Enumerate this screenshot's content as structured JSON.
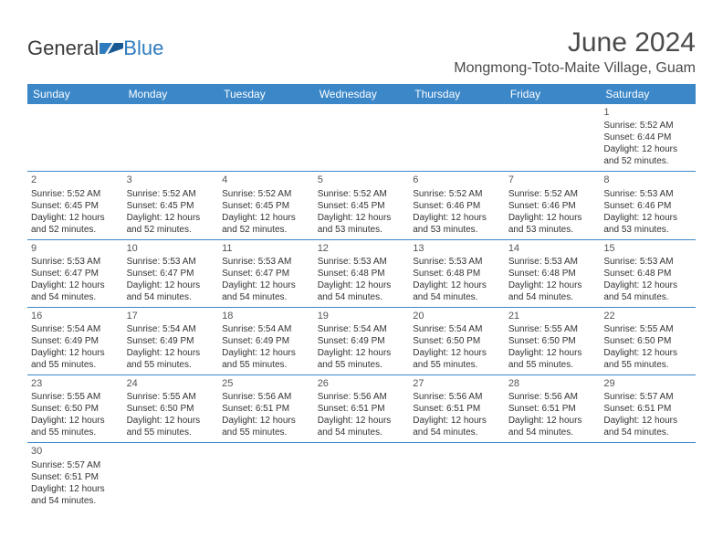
{
  "logo": {
    "text1": "General",
    "text2": "Blue"
  },
  "title": "June 2024",
  "location": "Mongmong-Toto-Maite Village, Guam",
  "header_bg": "#3b87c8",
  "header_text": "#ffffff",
  "rule_color": "#3b87c8",
  "daynames": [
    "Sunday",
    "Monday",
    "Tuesday",
    "Wednesday",
    "Thursday",
    "Friday",
    "Saturday"
  ],
  "weeks": [
    [
      null,
      null,
      null,
      null,
      null,
      null,
      {
        "n": "1",
        "sr": "Sunrise: 5:52 AM",
        "ss": "Sunset: 6:44 PM",
        "d1": "Daylight: 12 hours",
        "d2": "and 52 minutes."
      }
    ],
    [
      {
        "n": "2",
        "sr": "Sunrise: 5:52 AM",
        "ss": "Sunset: 6:45 PM",
        "d1": "Daylight: 12 hours",
        "d2": "and 52 minutes."
      },
      {
        "n": "3",
        "sr": "Sunrise: 5:52 AM",
        "ss": "Sunset: 6:45 PM",
        "d1": "Daylight: 12 hours",
        "d2": "and 52 minutes."
      },
      {
        "n": "4",
        "sr": "Sunrise: 5:52 AM",
        "ss": "Sunset: 6:45 PM",
        "d1": "Daylight: 12 hours",
        "d2": "and 52 minutes."
      },
      {
        "n": "5",
        "sr": "Sunrise: 5:52 AM",
        "ss": "Sunset: 6:45 PM",
        "d1": "Daylight: 12 hours",
        "d2": "and 53 minutes."
      },
      {
        "n": "6",
        "sr": "Sunrise: 5:52 AM",
        "ss": "Sunset: 6:46 PM",
        "d1": "Daylight: 12 hours",
        "d2": "and 53 minutes."
      },
      {
        "n": "7",
        "sr": "Sunrise: 5:52 AM",
        "ss": "Sunset: 6:46 PM",
        "d1": "Daylight: 12 hours",
        "d2": "and 53 minutes."
      },
      {
        "n": "8",
        "sr": "Sunrise: 5:53 AM",
        "ss": "Sunset: 6:46 PM",
        "d1": "Daylight: 12 hours",
        "d2": "and 53 minutes."
      }
    ],
    [
      {
        "n": "9",
        "sr": "Sunrise: 5:53 AM",
        "ss": "Sunset: 6:47 PM",
        "d1": "Daylight: 12 hours",
        "d2": "and 54 minutes."
      },
      {
        "n": "10",
        "sr": "Sunrise: 5:53 AM",
        "ss": "Sunset: 6:47 PM",
        "d1": "Daylight: 12 hours",
        "d2": "and 54 minutes."
      },
      {
        "n": "11",
        "sr": "Sunrise: 5:53 AM",
        "ss": "Sunset: 6:47 PM",
        "d1": "Daylight: 12 hours",
        "d2": "and 54 minutes."
      },
      {
        "n": "12",
        "sr": "Sunrise: 5:53 AM",
        "ss": "Sunset: 6:48 PM",
        "d1": "Daylight: 12 hours",
        "d2": "and 54 minutes."
      },
      {
        "n": "13",
        "sr": "Sunrise: 5:53 AM",
        "ss": "Sunset: 6:48 PM",
        "d1": "Daylight: 12 hours",
        "d2": "and 54 minutes."
      },
      {
        "n": "14",
        "sr": "Sunrise: 5:53 AM",
        "ss": "Sunset: 6:48 PM",
        "d1": "Daylight: 12 hours",
        "d2": "and 54 minutes."
      },
      {
        "n": "15",
        "sr": "Sunrise: 5:53 AM",
        "ss": "Sunset: 6:48 PM",
        "d1": "Daylight: 12 hours",
        "d2": "and 54 minutes."
      }
    ],
    [
      {
        "n": "16",
        "sr": "Sunrise: 5:54 AM",
        "ss": "Sunset: 6:49 PM",
        "d1": "Daylight: 12 hours",
        "d2": "and 55 minutes."
      },
      {
        "n": "17",
        "sr": "Sunrise: 5:54 AM",
        "ss": "Sunset: 6:49 PM",
        "d1": "Daylight: 12 hours",
        "d2": "and 55 minutes."
      },
      {
        "n": "18",
        "sr": "Sunrise: 5:54 AM",
        "ss": "Sunset: 6:49 PM",
        "d1": "Daylight: 12 hours",
        "d2": "and 55 minutes."
      },
      {
        "n": "19",
        "sr": "Sunrise: 5:54 AM",
        "ss": "Sunset: 6:49 PM",
        "d1": "Daylight: 12 hours",
        "d2": "and 55 minutes."
      },
      {
        "n": "20",
        "sr": "Sunrise: 5:54 AM",
        "ss": "Sunset: 6:50 PM",
        "d1": "Daylight: 12 hours",
        "d2": "and 55 minutes."
      },
      {
        "n": "21",
        "sr": "Sunrise: 5:55 AM",
        "ss": "Sunset: 6:50 PM",
        "d1": "Daylight: 12 hours",
        "d2": "and 55 minutes."
      },
      {
        "n": "22",
        "sr": "Sunrise: 5:55 AM",
        "ss": "Sunset: 6:50 PM",
        "d1": "Daylight: 12 hours",
        "d2": "and 55 minutes."
      }
    ],
    [
      {
        "n": "23",
        "sr": "Sunrise: 5:55 AM",
        "ss": "Sunset: 6:50 PM",
        "d1": "Daylight: 12 hours",
        "d2": "and 55 minutes."
      },
      {
        "n": "24",
        "sr": "Sunrise: 5:55 AM",
        "ss": "Sunset: 6:50 PM",
        "d1": "Daylight: 12 hours",
        "d2": "and 55 minutes."
      },
      {
        "n": "25",
        "sr": "Sunrise: 5:56 AM",
        "ss": "Sunset: 6:51 PM",
        "d1": "Daylight: 12 hours",
        "d2": "and 55 minutes."
      },
      {
        "n": "26",
        "sr": "Sunrise: 5:56 AM",
        "ss": "Sunset: 6:51 PM",
        "d1": "Daylight: 12 hours",
        "d2": "and 54 minutes."
      },
      {
        "n": "27",
        "sr": "Sunrise: 5:56 AM",
        "ss": "Sunset: 6:51 PM",
        "d1": "Daylight: 12 hours",
        "d2": "and 54 minutes."
      },
      {
        "n": "28",
        "sr": "Sunrise: 5:56 AM",
        "ss": "Sunset: 6:51 PM",
        "d1": "Daylight: 12 hours",
        "d2": "and 54 minutes."
      },
      {
        "n": "29",
        "sr": "Sunrise: 5:57 AM",
        "ss": "Sunset: 6:51 PM",
        "d1": "Daylight: 12 hours",
        "d2": "and 54 minutes."
      }
    ],
    [
      {
        "n": "30",
        "sr": "Sunrise: 5:57 AM",
        "ss": "Sunset: 6:51 PM",
        "d1": "Daylight: 12 hours",
        "d2": "and 54 minutes."
      },
      null,
      null,
      null,
      null,
      null,
      null
    ]
  ]
}
